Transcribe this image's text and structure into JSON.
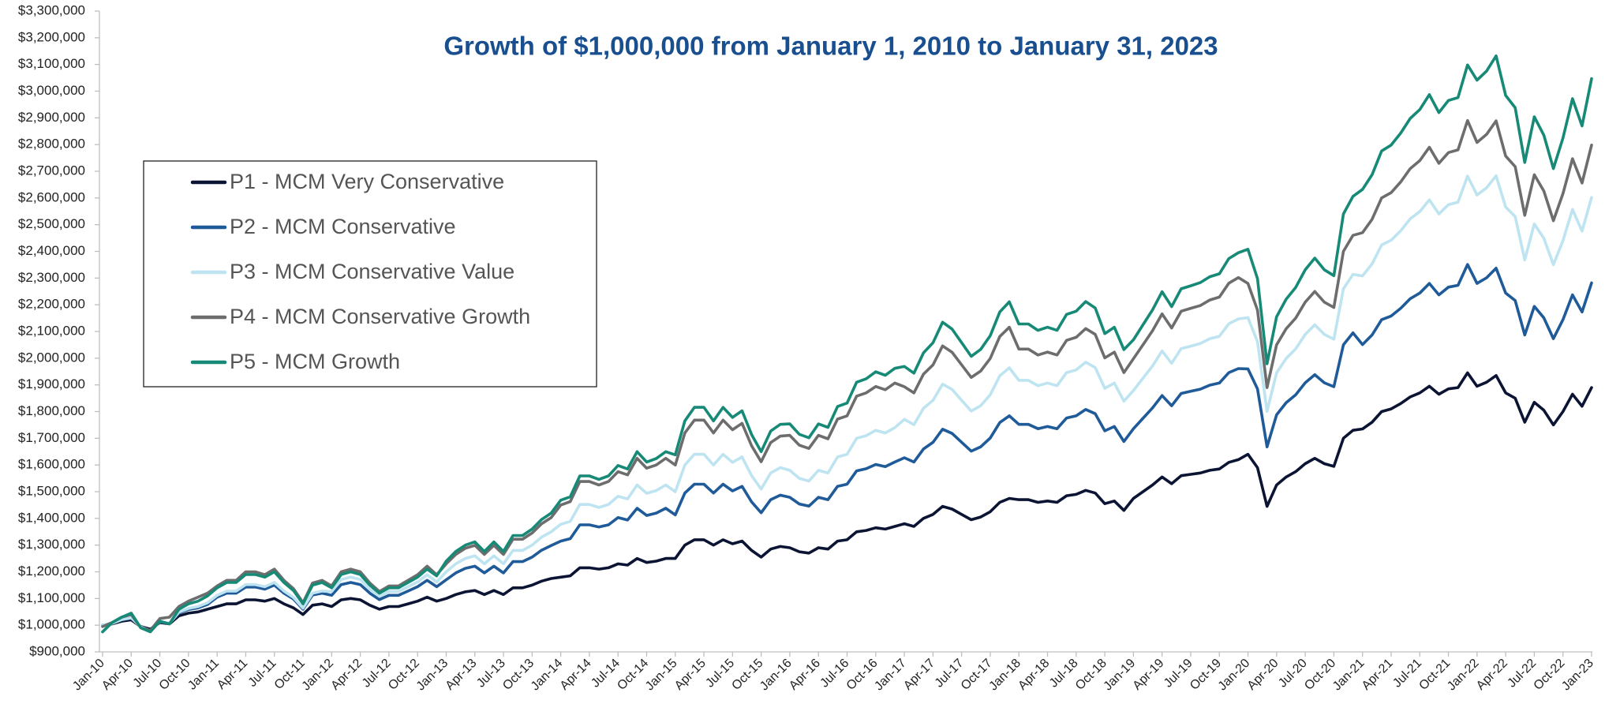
{
  "chart_data": {
    "type": "line",
    "title": "Growth of $1,000,000 from January 1, 2010 to January 31, 2023",
    "legend": "upper left",
    "ylim": [
      900000,
      3300000
    ],
    "yticks": [
      {
        "value": 900000,
        "label": "$900,000"
      },
      {
        "value": 1000000,
        "label": "$1,000,000"
      },
      {
        "value": 1100000,
        "label": "$1,100,000"
      },
      {
        "value": 1200000,
        "label": "$1,200,000"
      },
      {
        "value": 1300000,
        "label": "$1,300,000"
      },
      {
        "value": 1400000,
        "label": "$1,400,000"
      },
      {
        "value": 1500000,
        "label": "$1,500,000"
      },
      {
        "value": 1600000,
        "label": "$1,600,000"
      },
      {
        "value": 1700000,
        "label": "$1,700,000"
      },
      {
        "value": 1800000,
        "label": "$1,800,000"
      },
      {
        "value": 1900000,
        "label": "$1,900,000"
      },
      {
        "value": 2000000,
        "label": "$2,000,000"
      },
      {
        "value": 2100000,
        "label": "$2,100,000"
      },
      {
        "value": 2200000,
        "label": "$2,200,000"
      },
      {
        "value": 2300000,
        "label": "$2,300,000"
      },
      {
        "value": 2400000,
        "label": "$2,400,000"
      },
      {
        "value": 2500000,
        "label": "$2,500,000"
      },
      {
        "value": 2600000,
        "label": "$2,600,000"
      },
      {
        "value": 2700000,
        "label": "$2,700,000"
      },
      {
        "value": 2800000,
        "label": "$2,800,000"
      },
      {
        "value": 2900000,
        "label": "$2,900,000"
      },
      {
        "value": 3000000,
        "label": "$3,000,000"
      },
      {
        "value": 3100000,
        "label": "$3,100,000"
      },
      {
        "value": 3200000,
        "label": "$3,200,000"
      },
      {
        "value": 3300000,
        "label": "$3,300,000"
      }
    ],
    "categories": [
      "Jan-10",
      null,
      null,
      "Apr-10",
      null,
      null,
      "Jul-10",
      null,
      null,
      "Oct-10",
      null,
      null,
      "Jan-11",
      null,
      null,
      "Apr-11",
      null,
      null,
      "Jul-11",
      null,
      null,
      "Oct-11",
      null,
      null,
      "Jan-12",
      null,
      null,
      "Apr-12",
      null,
      null,
      "Jul-12",
      null,
      null,
      "Oct-12",
      null,
      null,
      "Jan-13",
      null,
      null,
      "Apr-13",
      null,
      null,
      "Jul-13",
      null,
      null,
      "Oct-13",
      null,
      null,
      "Jan-14",
      null,
      null,
      "Apr-14",
      null,
      null,
      "Jul-14",
      null,
      null,
      "Oct-14",
      null,
      null,
      "Jan-15",
      null,
      null,
      "Apr-15",
      null,
      null,
      "Jul-15",
      null,
      null,
      "Oct-15",
      null,
      null,
      "Jan-16",
      null,
      null,
      "Apr-16",
      null,
      null,
      "Jul-16",
      null,
      null,
      "Oct-16",
      null,
      null,
      "Jan-17",
      null,
      null,
      "Apr-17",
      null,
      null,
      "Jul-17",
      null,
      null,
      "Oct-17",
      null,
      null,
      "Jan-18",
      null,
      null,
      "Apr-18",
      null,
      null,
      "Jul-18",
      null,
      null,
      "Oct-18",
      null,
      null,
      "Jan-19",
      null,
      null,
      "Apr-19",
      null,
      null,
      "Jul-19",
      null,
      null,
      "Oct-19",
      null,
      null,
      "Jan-20",
      null,
      null,
      "Apr-20",
      null,
      null,
      "Jul-20",
      null,
      null,
      "Oct-20",
      null,
      null,
      "Jan-21",
      null,
      null,
      "Apr-21",
      null,
      null,
      "Jul-21",
      null,
      null,
      "Oct-21",
      null,
      null,
      "Jan-22",
      null,
      null,
      "Apr-22",
      null,
      null,
      "Jul-22",
      null,
      null,
      "Oct-22",
      null,
      null,
      "Jan-23"
    ],
    "series": [
      {
        "name": "P1 - MCM Very Conservative",
        "color": "#0b1533",
        "values": [
          1000000,
          1005000,
          1015000,
          1020000,
          995000,
          985000,
          1010000,
          1005000,
          1035000,
          1045000,
          1050000,
          1060000,
          1070000,
          1080000,
          1080000,
          1095000,
          1095000,
          1090000,
          1100000,
          1080000,
          1065000,
          1040000,
          1075000,
          1080000,
          1070000,
          1095000,
          1100000,
          1095000,
          1075000,
          1060000,
          1070000,
          1070000,
          1080000,
          1090000,
          1105000,
          1090000,
          1100000,
          1115000,
          1125000,
          1130000,
          1115000,
          1130000,
          1115000,
          1140000,
          1140000,
          1150000,
          1165000,
          1175000,
          1180000,
          1185000,
          1215000,
          1215000,
          1210000,
          1215000,
          1230000,
          1225000,
          1250000,
          1235000,
          1240000,
          1250000,
          1250000,
          1300000,
          1320000,
          1320000,
          1300000,
          1320000,
          1305000,
          1315000,
          1280000,
          1255000,
          1285000,
          1295000,
          1290000,
          1275000,
          1270000,
          1290000,
          1285000,
          1315000,
          1320000,
          1350000,
          1355000,
          1365000,
          1360000,
          1370000,
          1380000,
          1370000,
          1400000,
          1415000,
          1445000,
          1435000,
          1415000,
          1395000,
          1405000,
          1425000,
          1460000,
          1475000,
          1470000,
          1470000,
          1460000,
          1465000,
          1460000,
          1485000,
          1490000,
          1505000,
          1495000,
          1455000,
          1465000,
          1430000,
          1475000,
          1500000,
          1525000,
          1555000,
          1530000,
          1560000,
          1565000,
          1570000,
          1580000,
          1585000,
          1610000,
          1620000,
          1640000,
          1590000,
          1445000,
          1525000,
          1555000,
          1575000,
          1605000,
          1625000,
          1605000,
          1595000,
          1700000,
          1730000,
          1735000,
          1760000,
          1800000,
          1810000,
          1830000,
          1855000,
          1870000,
          1895000,
          1865000,
          1885000,
          1890000,
          1945000,
          1895000,
          1910000,
          1935000,
          1870000,
          1850000,
          1760000,
          1835000,
          1805000,
          1750000,
          1800000,
          1865000,
          1820000,
          1890000
        ]
      },
      {
        "name": "P2 - MCM Conservative",
        "color": "#1f5a99",
        "values": [
          1000000,
          1006000,
          1020000,
          1026000,
          994000,
          980000,
          1013000,
          1006000,
          1046000,
          1059000,
          1065000,
          1078000,
          1105000,
          1120000,
          1120000,
          1143000,
          1143000,
          1135000,
          1150000,
          1120000,
          1098000,
          1060000,
          1113000,
          1120000,
          1112000,
          1152000,
          1160000,
          1152000,
          1120000,
          1096000,
          1112000,
          1112000,
          1128000,
          1144000,
          1168000,
          1144000,
          1170000,
          1196000,
          1213000,
          1221000,
          1196000,
          1221000,
          1196000,
          1238000,
          1238000,
          1255000,
          1281000,
          1298000,
          1315000,
          1324000,
          1376000,
          1376000,
          1368000,
          1376000,
          1403000,
          1394000,
          1438000,
          1411000,
          1420000,
          1438000,
          1413000,
          1495000,
          1528000,
          1528000,
          1495000,
          1528000,
          1503000,
          1520000,
          1462000,
          1421000,
          1470000,
          1487000,
          1479000,
          1454000,
          1446000,
          1479000,
          1470000,
          1520000,
          1528000,
          1578000,
          1586000,
          1602000,
          1594000,
          1611000,
          1627000,
          1611000,
          1660000,
          1685000,
          1734000,
          1718000,
          1685000,
          1652000,
          1668000,
          1701000,
          1759000,
          1784000,
          1752000,
          1752000,
          1736000,
          1744000,
          1736000,
          1776000,
          1784000,
          1808000,
          1792000,
          1728000,
          1744000,
          1688000,
          1736000,
          1775000,
          1814000,
          1860000,
          1822000,
          1868000,
          1876000,
          1884000,
          1899000,
          1907000,
          1946000,
          1961000,
          1960000,
          1885000,
          1668000,
          1788000,
          1833000,
          1863000,
          1908000,
          1938000,
          1908000,
          1893000,
          2050000,
          2095000,
          2051000,
          2087000,
          2144000,
          2158000,
          2187000,
          2223000,
          2244000,
          2280000,
          2237000,
          2266000,
          2273000,
          2351000,
          2280000,
          2301000,
          2337000,
          2244000,
          2216000,
          2087000,
          2194000,
          2151000,
          2073000,
          2144000,
          2237000,
          2173000,
          2282000
        ]
      },
      {
        "name": "P3 - MCM Conservative Value",
        "color": "#bde4f0",
        "values": [
          1000000,
          1007000,
          1021000,
          1028000,
          993000,
          979000,
          1014000,
          1007000,
          1049000,
          1063000,
          1070000,
          1084000,
          1112000,
          1128000,
          1128000,
          1152000,
          1152000,
          1144000,
          1160000,
          1128000,
          1104000,
          1064000,
          1120000,
          1128000,
          1126000,
          1171000,
          1180000,
          1171000,
          1135000,
          1108000,
          1126000,
          1126000,
          1144000,
          1162000,
          1189000,
          1162000,
          1200000,
          1230000,
          1250000,
          1260000,
          1230000,
          1260000,
          1230000,
          1280000,
          1280000,
          1300000,
          1330000,
          1350000,
          1378000,
          1389000,
          1452000,
          1452000,
          1441000,
          1452000,
          1483000,
          1473000,
          1525000,
          1494000,
          1504000,
          1525000,
          1500000,
          1600000,
          1640000,
          1640000,
          1600000,
          1640000,
          1610000,
          1630000,
          1560000,
          1510000,
          1570000,
          1590000,
          1580000,
          1550000,
          1540000,
          1580000,
          1570000,
          1630000,
          1640000,
          1700000,
          1710000,
          1730000,
          1720000,
          1740000,
          1771000,
          1751000,
          1812000,
          1842000,
          1903000,
          1883000,
          1842000,
          1802000,
          1822000,
          1863000,
          1934000,
          1964000,
          1917000,
          1917000,
          1897000,
          1907000,
          1897000,
          1946000,
          1956000,
          1985000,
          1965000,
          1887000,
          1907000,
          1839000,
          1879000,
          1925000,
          1971000,
          2027000,
          1981000,
          2036000,
          2045000,
          2055000,
          2073000,
          2082000,
          2129000,
          2147000,
          2152000,
          2062000,
          1801000,
          1945000,
          1999000,
          2035000,
          2089000,
          2125000,
          2089000,
          2071000,
          2260000,
          2314000,
          2308000,
          2353000,
          2424000,
          2442000,
          2477000,
          2522000,
          2549000,
          2593000,
          2540000,
          2575000,
          2584000,
          2682000,
          2611000,
          2638000,
          2683000,
          2566000,
          2530000,
          2368000,
          2503000,
          2449000,
          2350000,
          2440000,
          2557000,
          2476000,
          2602000
        ]
      },
      {
        "name": "P4 - MCM Conservative Growth",
        "color": "#6d6d6d",
        "values": [
          995000,
          1010000,
          1030000,
          1040000,
          990000,
          980000,
          1025000,
          1030000,
          1070000,
          1090000,
          1105000,
          1120000,
          1147000,
          1168000,
          1168000,
          1200000,
          1200000,
          1189000,
          1210000,
          1168000,
          1137000,
          1084000,
          1158000,
          1168000,
          1147000,
          1200000,
          1210000,
          1200000,
          1158000,
          1126000,
          1147000,
          1147000,
          1168000,
          1189000,
          1221000,
          1189000,
          1230000,
          1265000,
          1288000,
          1299000,
          1265000,
          1299000,
          1265000,
          1322000,
          1322000,
          1345000,
          1380000,
          1403000,
          1450000,
          1463000,
          1538000,
          1538000,
          1525000,
          1538000,
          1575000,
          1563000,
          1625000,
          1588000,
          1600000,
          1625000,
          1600000,
          1720000,
          1768000,
          1768000,
          1720000,
          1768000,
          1732000,
          1756000,
          1672000,
          1612000,
          1684000,
          1708000,
          1711000,
          1674000,
          1662000,
          1711000,
          1698000,
          1772000,
          1784000,
          1858000,
          1870000,
          1894000,
          1882000,
          1907000,
          1893000,
          1870000,
          1940000,
          1975000,
          2046000,
          2022000,
          1975000,
          1928000,
          1952000,
          1999000,
          2081000,
          2116000,
          2034000,
          2034000,
          2012000,
          2023000,
          2012000,
          2067000,
          2078000,
          2111000,
          2089000,
          2001000,
          2023000,
          1946000,
          1998000,
          2050000,
          2103000,
          2166000,
          2113000,
          2176000,
          2187000,
          2197000,
          2218000,
          2229000,
          2281000,
          2302000,
          2280000,
          2180000,
          1890000,
          2050000,
          2110000,
          2150000,
          2210000,
          2250000,
          2210000,
          2190000,
          2400000,
          2460000,
          2470000,
          2520000,
          2600000,
          2620000,
          2660000,
          2710000,
          2740000,
          2790000,
          2730000,
          2770000,
          2780000,
          2890000,
          2808000,
          2838000,
          2889000,
          2757000,
          2717000,
          2535000,
          2687000,
          2626000,
          2515000,
          2616000,
          2747000,
          2656000,
          2798000
        ]
      },
      {
        "name": "P5 - MCM Growth",
        "color": "#178a77",
        "values": [
          975000,
          1010000,
          1030000,
          1045000,
          990000,
          975000,
          1015000,
          1005000,
          1060000,
          1080000,
          1090000,
          1110000,
          1140000,
          1160000,
          1160000,
          1190000,
          1190000,
          1180000,
          1200000,
          1160000,
          1130000,
          1080000,
          1150000,
          1160000,
          1140000,
          1190000,
          1200000,
          1190000,
          1150000,
          1120000,
          1140000,
          1140000,
          1160000,
          1180000,
          1210000,
          1185000,
          1240000,
          1276000,
          1300000,
          1312000,
          1276000,
          1312000,
          1276000,
          1336000,
          1336000,
          1360000,
          1396000,
          1420000,
          1468000,
          1481000,
          1559000,
          1559000,
          1546000,
          1559000,
          1598000,
          1585000,
          1650000,
          1611000,
          1624000,
          1650000,
          1638000,
          1765000,
          1816000,
          1816000,
          1765000,
          1816000,
          1778000,
          1803000,
          1714000,
          1650000,
          1727000,
          1752000,
          1754000,
          1715000,
          1702000,
          1754000,
          1741000,
          1819000,
          1832000,
          1910000,
          1923000,
          1949000,
          1936000,
          1962000,
          1969000,
          1944000,
          2020000,
          2058000,
          2135000,
          2109000,
          2058000,
          2007000,
          2033000,
          2084000,
          2173000,
          2211000,
          2128000,
          2128000,
          2104000,
          2116000,
          2104000,
          2164000,
          2176000,
          2212000,
          2188000,
          2092000,
          2116000,
          2032000,
          2069000,
          2125000,
          2181000,
          2249000,
          2193000,
          2260000,
          2271000,
          2283000,
          2305000,
          2316000,
          2373000,
          2395000,
          2408000,
          2298000,
          1979000,
          2155000,
          2221000,
          2265000,
          2331000,
          2375000,
          2331000,
          2309000,
          2540000,
          2606000,
          2632000,
          2687000,
          2776000,
          2798000,
          2843000,
          2898000,
          2931000,
          2987000,
          2920000,
          2965000,
          2976000,
          3098000,
          3041000,
          3075000,
          3132000,
          2984000,
          2938000,
          2733000,
          2904000,
          2835000,
          2710000,
          2824000,
          2972000,
          2870000,
          3047000
        ]
      }
    ]
  }
}
